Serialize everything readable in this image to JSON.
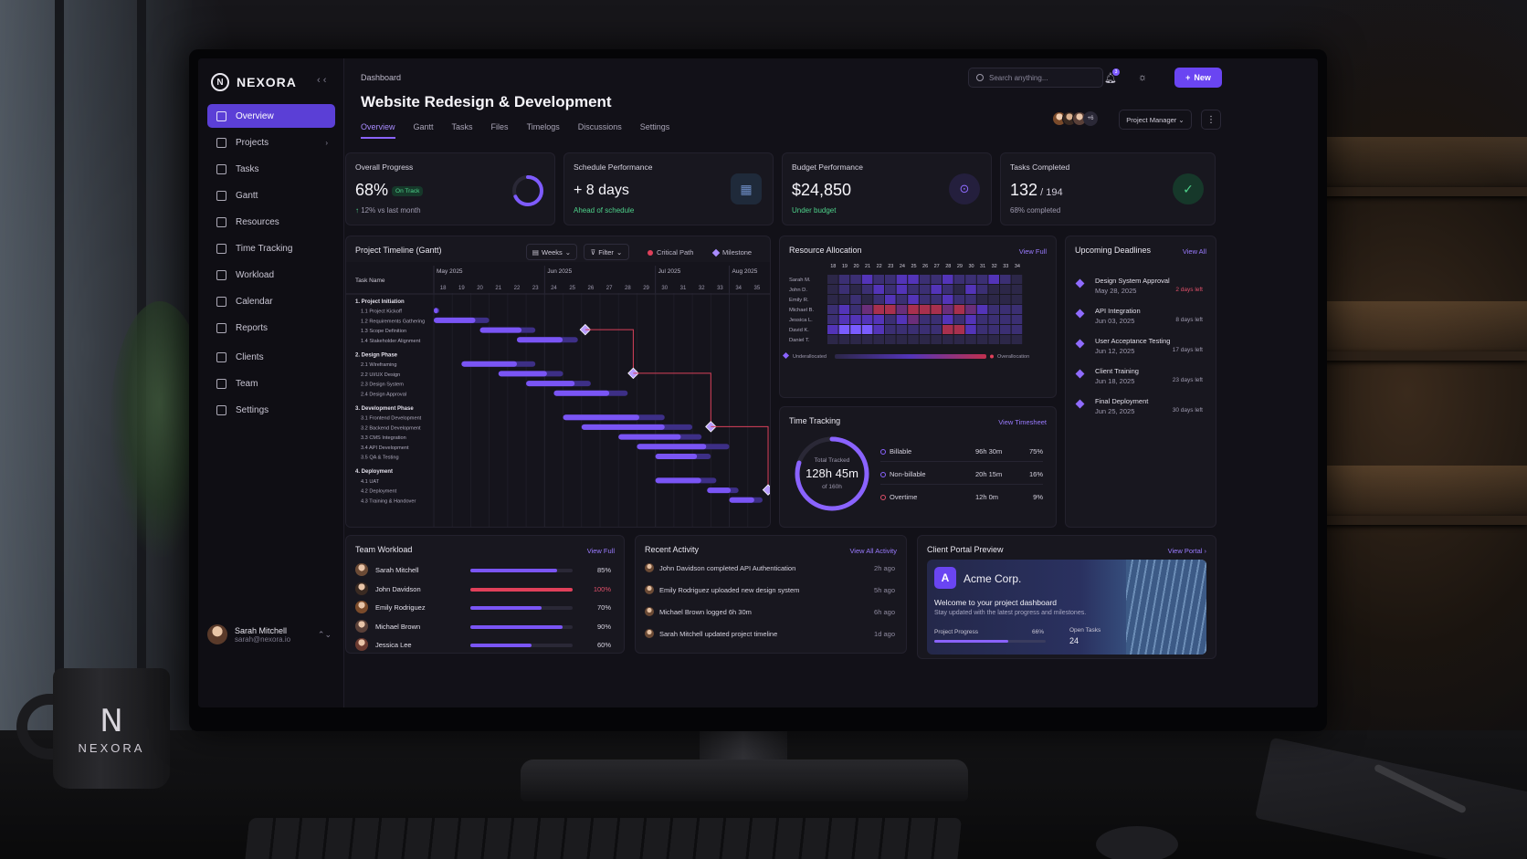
{
  "brand": {
    "name": "NEXORA",
    "mark": "N",
    "mug_text": "NEXORA"
  },
  "sidebar": {
    "items": [
      {
        "label": "Overview",
        "active": true
      },
      {
        "label": "Projects",
        "chevron": true
      },
      {
        "label": "Tasks"
      },
      {
        "label": "Gantt"
      },
      {
        "label": "Resources"
      },
      {
        "label": "Time Tracking"
      },
      {
        "label": "Workload"
      },
      {
        "label": "Calendar"
      },
      {
        "label": "Reports"
      },
      {
        "label": "Clients"
      },
      {
        "label": "Team"
      },
      {
        "label": "Settings"
      }
    ],
    "user": {
      "name": "Sarah Mitchell",
      "email": "sarah@nexora.io"
    }
  },
  "header": {
    "breadcrumb": "Dashboard",
    "title": "Website Redesign & Development",
    "tabs": [
      "Overview",
      "Gantt",
      "Tasks",
      "Files",
      "Timelogs",
      "Discussions",
      "Settings"
    ],
    "active_tab": "Overview",
    "search_placeholder": "Search anything...",
    "notification_count": "3",
    "new_label": "New",
    "avatars_more": "+6",
    "role_label": "Project Manager"
  },
  "kpis": {
    "progress": {
      "title": "Overall Progress",
      "value": "68%",
      "badge": "On Track",
      "sub": "12% vs last month",
      "fraction": 0.68
    },
    "schedule": {
      "title": "Schedule Performance",
      "value": "+ 8 days",
      "sub": "Ahead of schedule"
    },
    "budget": {
      "title": "Budget Performance",
      "value": "$24,850",
      "sub": "Under budget"
    },
    "tasks": {
      "title": "Tasks Completed",
      "value": "132",
      "total": "194",
      "sub": "68% completed"
    }
  },
  "gantt": {
    "title": "Project Timeline (Gantt)",
    "weeks_label": "Weeks",
    "filter_label": "Filter",
    "legend_critical": "Critical Path",
    "legend_milestone": "Milestone",
    "task_header": "Task Name",
    "months": [
      "May 2025",
      "Jun 2025",
      "Jul 2025",
      "Aug 2025"
    ],
    "weeks": [
      "18",
      "19",
      "20",
      "21",
      "22",
      "23",
      "24",
      "25",
      "26",
      "27",
      "28",
      "29",
      "30",
      "31",
      "32",
      "33",
      "34",
      "35"
    ],
    "rows": [
      {
        "label": "1. Project Initiation",
        "group": true
      },
      {
        "label": "1.1 Project Kickoff",
        "start": 1.0,
        "end": 1.3
      },
      {
        "label": "1.2 Requirements Gathering",
        "start": 1.0,
        "end": 4.0
      },
      {
        "label": "1.3 Scope Definition",
        "start": 3.5,
        "end": 6.5
      },
      {
        "label": "1.4 Stakeholder Alignment",
        "start": 5.5,
        "end": 8.8
      },
      {
        "label": "2. Design Phase",
        "group": true
      },
      {
        "label": "2.1 Wireframing",
        "start": 2.5,
        "end": 6.5
      },
      {
        "label": "2.2 UI/UX Design",
        "start": 4.5,
        "end": 8.0
      },
      {
        "label": "2.3 Design System",
        "start": 6.0,
        "end": 9.5
      },
      {
        "label": "2.4 Design Approval",
        "start": 7.5,
        "end": 11.5
      },
      {
        "label": "3. Development Phase",
        "group": true
      },
      {
        "label": "3.1 Frontend Development",
        "start": 8.0,
        "end": 13.5
      },
      {
        "label": "3.2 Backend Development",
        "start": 9.0,
        "end": 15.0
      },
      {
        "label": "3.3 CMS Integration",
        "start": 11.0,
        "end": 15.5
      },
      {
        "label": "3.4 API Development",
        "start": 12.0,
        "end": 17.0
      },
      {
        "label": "3.5 QA & Testing",
        "start": 13.0,
        "end": 16.0
      },
      {
        "label": "4. Deployment",
        "group": true
      },
      {
        "label": "4.1 UAT",
        "start": 13.0,
        "end": 16.3
      },
      {
        "label": "4.2 Deployment",
        "start": 15.8,
        "end": 17.5
      },
      {
        "label": "4.3 Training & Handover",
        "start": 17.0,
        "end": 18.8
      }
    ],
    "milestones": [
      {
        "row": 3,
        "week": 9.2
      },
      {
        "row": 7,
        "week": 11.8
      },
      {
        "row": 12,
        "week": 16.0
      },
      {
        "row": 18,
        "week": 19.1
      }
    ]
  },
  "resources": {
    "title": "Resource Allocation",
    "view": "View Full",
    "weeks": [
      "18",
      "19",
      "20",
      "21",
      "22",
      "23",
      "24",
      "25",
      "26",
      "27",
      "28",
      "29",
      "30",
      "31",
      "32",
      "33",
      "34"
    ],
    "people": [
      "Sarah M.",
      "John D.",
      "Emily R.",
      "Michael B.",
      "Jessica L.",
      "David K.",
      "Daniel T."
    ],
    "matrix": [
      [
        1,
        2,
        2,
        3,
        2,
        2,
        3,
        3,
        2,
        2,
        3,
        2,
        2,
        2,
        3,
        2,
        1
      ],
      [
        1,
        2,
        1,
        2,
        3,
        2,
        3,
        2,
        2,
        3,
        2,
        1,
        3,
        2,
        1,
        1,
        1
      ],
      [
        1,
        1,
        2,
        1,
        2,
        3,
        2,
        3,
        2,
        2,
        3,
        2,
        2,
        1,
        1,
        1,
        1
      ],
      [
        2,
        3,
        2,
        4,
        5,
        5,
        4,
        5,
        5,
        5,
        4,
        5,
        4,
        3,
        2,
        2,
        2
      ],
      [
        2,
        3,
        3,
        3,
        3,
        2,
        3,
        4,
        2,
        2,
        3,
        2,
        3,
        2,
        2,
        2,
        2
      ],
      [
        3,
        6,
        6,
        6,
        3,
        2,
        2,
        2,
        2,
        2,
        5,
        5,
        3,
        2,
        2,
        2,
        2
      ],
      [
        1,
        1,
        1,
        1,
        1,
        1,
        1,
        1,
        1,
        1,
        1,
        1,
        1,
        1,
        1,
        1,
        1
      ]
    ],
    "legend_under": "Underallocated",
    "legend_over": "Overallocation"
  },
  "deadlines": {
    "title": "Upcoming Deadlines",
    "view": "View All",
    "items": [
      {
        "name": "Design System Approval",
        "date": "May 28, 2025",
        "left": "2 days left",
        "urgent": true
      },
      {
        "name": "API Integration",
        "date": "Jun 03, 2025",
        "left": "8 days left"
      },
      {
        "name": "User Acceptance Testing",
        "date": "Jun 12, 2025",
        "left": "17 days left"
      },
      {
        "name": "Client Training",
        "date": "Jun 18, 2025",
        "left": "23 days left"
      },
      {
        "name": "Final Deployment",
        "date": "Jun 25, 2025",
        "left": "30 days left"
      }
    ]
  },
  "time_tracking": {
    "title": "Time Tracking",
    "view": "View Timesheet",
    "ring_label": "Total Tracked",
    "total": "128h 45m",
    "of": "of 160h",
    "fraction": 0.8,
    "rows": [
      {
        "label": "Billable",
        "value": "96h 30m",
        "pct": "75%",
        "color": "#8a63ff"
      },
      {
        "label": "Non-billable",
        "value": "20h 15m",
        "pct": "16%",
        "color": "#8a63ff"
      },
      {
        "label": "Overtime",
        "value": "12h 0m",
        "pct": "9%",
        "color": "#e0506a"
      }
    ]
  },
  "workload": {
    "title": "Team Workload",
    "view": "View Full",
    "members": [
      {
        "name": "Sarah Mitchell",
        "pct": "85%",
        "value": 85
      },
      {
        "name": "John Davidson",
        "pct": "100%",
        "value": 100,
        "over": true
      },
      {
        "name": "Emily Rodriguez",
        "pct": "70%",
        "value": 70
      },
      {
        "name": "Michael Brown",
        "pct": "90%",
        "value": 90
      },
      {
        "name": "Jessica Lee",
        "pct": "60%",
        "value": 60
      }
    ]
  },
  "activity": {
    "title": "Recent Activity",
    "view": "View All Activity",
    "items": [
      {
        "text": "John Davidson completed API Authentication",
        "time": "2h ago"
      },
      {
        "text": "Emily Rodriguez uploaded new design system",
        "time": "5h ago"
      },
      {
        "text": "Michael Brown logged 6h 30m",
        "time": "6h ago"
      },
      {
        "text": "Sarah Mitchell updated project timeline",
        "time": "1d ago"
      }
    ]
  },
  "portal": {
    "title": "Client Portal Preview",
    "view": "View Portal",
    "client": "Acme Corp.",
    "welcome": "Welcome to your project dashboard",
    "sub": "Stay updated with the latest progress and milestones.",
    "progress_label": "Project Progress",
    "progress_pct": "66%",
    "progress_value": 0.66,
    "open_tasks_label": "Open Tasks",
    "open_tasks": "24"
  }
}
